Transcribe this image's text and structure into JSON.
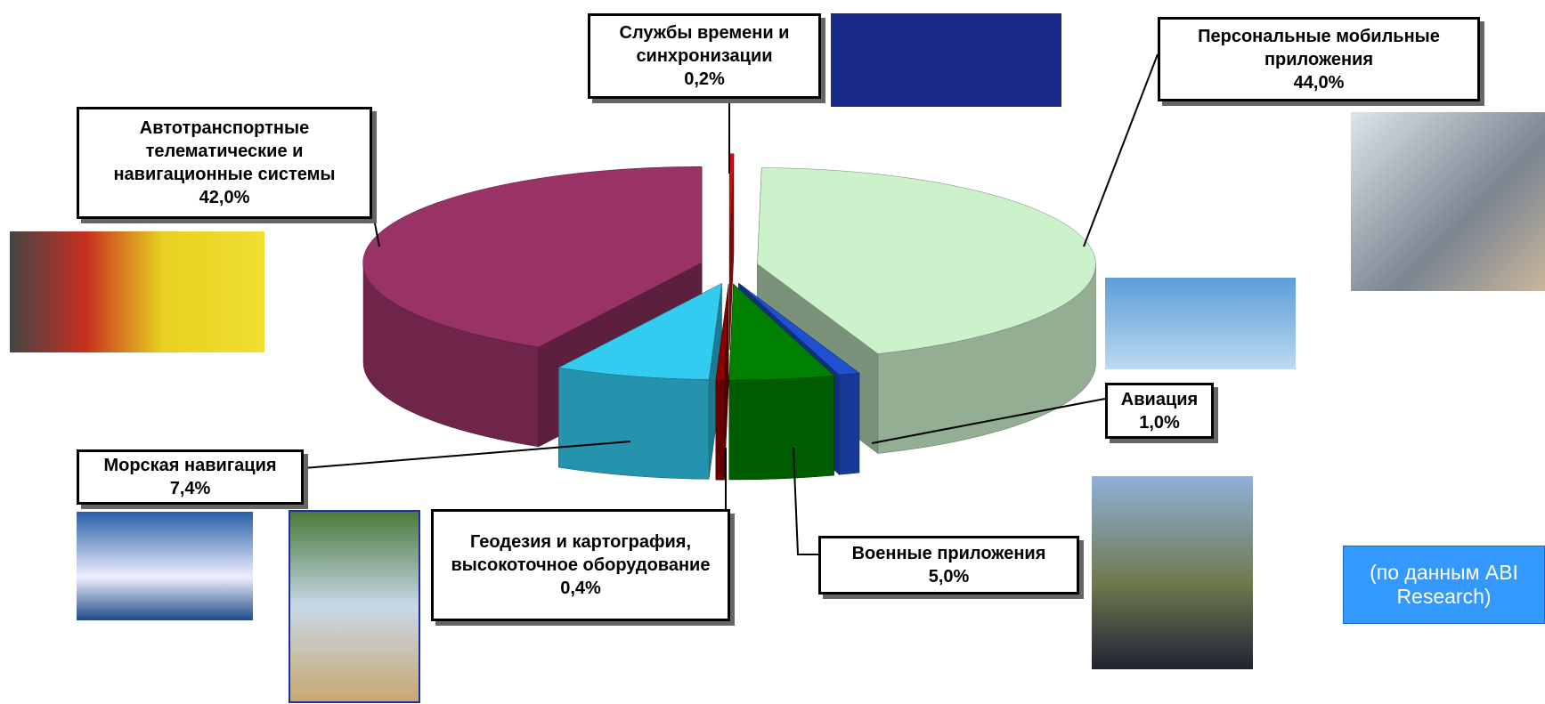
{
  "chart_data": {
    "type": "pie",
    "categories": [
      "Службы времени и синхронизации",
      "Персональные мобильные приложения",
      "Авиация",
      "Военные приложения",
      "Геодезия и картография, высокоточное оборудование",
      "Морская навигация",
      "Автотранспортные телематические и навигационные системы"
    ],
    "values": [
      0.2,
      44.0,
      1.0,
      5.0,
      0.4,
      7.4,
      42.0
    ],
    "value_labels": [
      "0,2%",
      "44,0%",
      "1,0%",
      "5,0%",
      "0,4%",
      "7,4%",
      "42,0%"
    ],
    "colors": [
      "#d01010",
      "#ccf2cc",
      "#2050d0",
      "#008000",
      "#8b0000",
      "#33ccf0",
      "#993366"
    ],
    "annotation": "(по данным ABI Research)"
  }
}
